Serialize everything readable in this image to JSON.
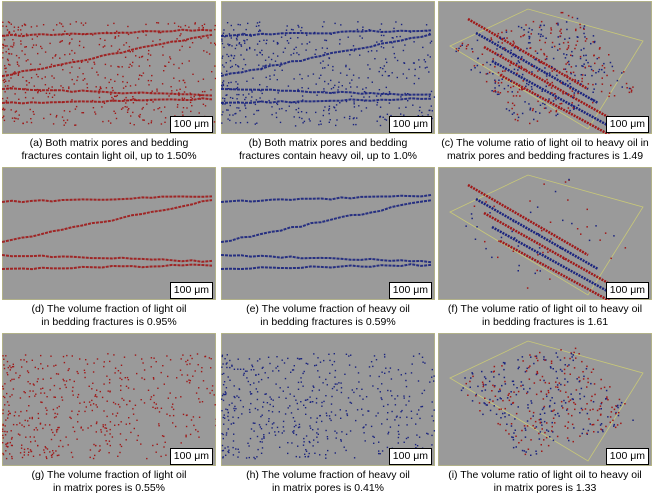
{
  "panels": [
    {
      "caption": [
        "(a) Both matrix pores and bedding",
        "fractures contain light oil, up to 1.50%"
      ],
      "scale": "100 μm"
    },
    {
      "caption": [
        "(b) Both matrix pores and bedding",
        "fractures contain heavy oil, up to 1.0%"
      ],
      "scale": "100 μm"
    },
    {
      "caption": [
        "(c) The volume ratio of light oil to heavy oil in",
        "matrix pores and bedding fractures is 1.49"
      ],
      "scale": "100 μm"
    },
    {
      "caption": [
        "(d) The volume fraction of light oil",
        "in bedding fractures is 0.95%"
      ],
      "scale": "100 μm"
    },
    {
      "caption": [
        "(e) The volume fraction of heavy oil",
        "in bedding fractures is 0.59%"
      ],
      "scale": "100 μm"
    },
    {
      "caption": [
        "(f) The volume ratio of light oil to heavy oil",
        "in bedding fractures is 1.61"
      ],
      "scale": "100 μm"
    },
    {
      "caption": [
        "(g) The volume fraction of light oil",
        "in matrix pores is 0.55%"
      ],
      "scale": "100 μm"
    },
    {
      "caption": [
        "(h) The volume fraction of heavy oil",
        "in matrix pores is 0.41%"
      ],
      "scale": "100 μm"
    },
    {
      "caption": [
        "(i) The volume ratio of light oil to heavy oil",
        "in matrix pores is 1.33"
      ],
      "scale": "100 μm"
    }
  ]
}
